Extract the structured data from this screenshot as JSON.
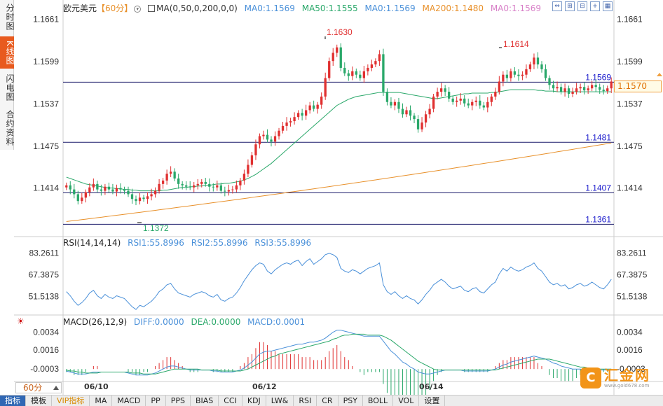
{
  "left_tabs": [
    {
      "label": "分时图",
      "active": false
    },
    {
      "label": "K线图",
      "active": true
    },
    {
      "label": "闪电图",
      "active": false
    },
    {
      "label": "合约资料",
      "active": false
    }
  ],
  "header": {
    "symbol": "欧元美元",
    "period": "【60分】",
    "period_icon": "chevron-down-circle-icon",
    "ma_params": "MA(0,50,0,200,0,0)",
    "ma_items": [
      {
        "label": "MA0:1.1569",
        "color": "#4a90d9"
      },
      {
        "label": "MA50:1.1555",
        "color": "#2aa86a"
      },
      {
        "label": "MA0:1.1569",
        "color": "#4a90d9"
      },
      {
        "label": "MA200:1.1480",
        "color": "#e8902a"
      },
      {
        "label": "MA0:1.1569",
        "color": "#d880c8"
      }
    ]
  },
  "window_tools": [
    "zoom-fit-icon",
    "zoom-in-icon",
    "zoom-out-icon",
    "add-icon",
    "grid-icon"
  ],
  "price_axis": {
    "left_ticks": [
      "1.1661",
      "1.1599",
      "1.1537",
      "1.1475",
      "1.1414"
    ],
    "right_ticks": [
      "1.1661",
      "1.1599",
      "1.1537",
      "1.1475",
      "1.1414"
    ],
    "current_price": "1.1570"
  },
  "price_lines": [
    {
      "label": "1.1569",
      "value": 1.1569
    },
    {
      "label": "1.1481",
      "value": 1.1481
    },
    {
      "label": "1.1407",
      "value": 1.1407
    },
    {
      "label": "1.1361",
      "value": 1.1361
    }
  ],
  "annotations": {
    "high1": "1.1630",
    "high2": "1.1614",
    "low1": "1.1372"
  },
  "rsi": {
    "title": "RSI(14,14,14)",
    "items": [
      {
        "label": "RSI1:55.8996",
        "color": "#4a90d9"
      },
      {
        "label": "RSI2:55.8996",
        "color": "#4a90d9"
      },
      {
        "label": "RSI3:55.8996",
        "color": "#4a90d9"
      }
    ],
    "ticks": [
      "83.2611",
      "67.3875",
      "51.5138"
    ]
  },
  "macd": {
    "title": "MACD(26,12,9)",
    "items": [
      {
        "label": "DIFF:0.0000",
        "color": "#4a90d9"
      },
      {
        "label": "DEA:0.0000",
        "color": "#2aa86a"
      },
      {
        "label": "MACD:0.0001",
        "color": "#4a90d9"
      }
    ],
    "ticks": [
      "0.0034",
      "0.0016",
      "-0.0003"
    ]
  },
  "dates": [
    "06/10",
    "06/12",
    "06/14"
  ],
  "period_select": "60分",
  "bottom_tabs": [
    "指标",
    "模板",
    "VIP指标",
    "MA",
    "MACD",
    "PP",
    "PPS",
    "BIAS",
    "CCI",
    "KDJ",
    "LW&",
    "RSI",
    "CR",
    "PSY",
    "BOLL",
    "VOL",
    "设置"
  ],
  "watermark": {
    "logo": "C",
    "title": "汇金网",
    "sub": "www.gold678.com"
  },
  "chart_data": {
    "type": "candlestick",
    "title": "欧元美元 60分",
    "ylim": [
      1.1345,
      1.1675
    ],
    "closes": [
      1.1418,
      1.1412,
      1.1405,
      1.1395,
      1.14,
      1.1408,
      1.1415,
      1.142,
      1.1412,
      1.141,
      1.1416,
      1.1412,
      1.1409,
      1.1414,
      1.1412,
      1.141,
      1.1405,
      1.1398,
      1.1395,
      1.14,
      1.1398,
      1.1402,
      1.1405,
      1.141,
      1.142,
      1.1425,
      1.1435,
      1.1438,
      1.1428,
      1.142,
      1.1418,
      1.1416,
      1.1415,
      1.1418,
      1.142,
      1.1423,
      1.142,
      1.1416,
      1.1415,
      1.1418,
      1.141,
      1.1409,
      1.1411,
      1.1412,
      1.1418,
      1.1425,
      1.1435,
      1.1448,
      1.1462,
      1.1478,
      1.149,
      1.1492,
      1.1485,
      1.1482,
      1.149,
      1.1498,
      1.1505,
      1.151,
      1.1512,
      1.1518,
      1.1524,
      1.152,
      1.1528,
      1.1535,
      1.153,
      1.1536,
      1.1548,
      1.1575,
      1.16,
      1.1612,
      1.162,
      1.159,
      1.1582,
      1.1578,
      1.1585,
      1.158,
      1.1575,
      1.1585,
      1.159,
      1.1595,
      1.16,
      1.161,
      1.1555,
      1.154,
      1.1535,
      1.154,
      1.153,
      1.1522,
      1.1528,
      1.152,
      1.1515,
      1.15,
      1.151,
      1.1522,
      1.153,
      1.1548,
      1.1555,
      1.156,
      1.1555,
      1.1545,
      1.154,
      1.1542,
      1.1545,
      1.1538,
      1.1535,
      1.154,
      1.1542,
      1.1535,
      1.1532,
      1.154,
      1.1548,
      1.1555,
      1.157,
      1.158,
      1.1575,
      1.1585,
      1.158,
      1.1578,
      1.158,
      1.1588,
      1.1595,
      1.1605,
      1.1595,
      1.1588,
      1.1575,
      1.1565,
      1.156,
      1.1562,
      1.1555,
      1.156,
      1.1552,
      1.1555,
      1.156,
      1.1562,
      1.1557,
      1.156,
      1.1565,
      1.1562,
      1.1558,
      1.1556,
      1.156,
      1.157
    ],
    "ma50": [
      1.143,
      1.1428,
      1.1426,
      1.1424,
      1.1422,
      1.142,
      1.1419,
      1.1418,
      1.1417,
      1.1416,
      1.1415,
      1.1414,
      1.1414,
      1.1413,
      1.1413,
      1.1412,
      1.1412,
      1.1411,
      1.1411,
      1.141,
      1.141,
      1.141,
      1.141,
      1.141,
      1.141,
      1.1411,
      1.1411,
      1.1412,
      1.1413,
      1.1414,
      1.1415,
      1.1415,
      1.1416,
      1.1416,
      1.1417,
      1.1417,
      1.1418,
      1.1418,
      1.1419,
      1.142,
      1.142,
      1.1421,
      1.1421,
      1.1422,
      1.1423,
      1.1424,
      1.1426,
      1.1428,
      1.1431,
      1.1434,
      1.1438,
      1.1442,
      1.1446,
      1.145,
      1.1455,
      1.146,
      1.1465,
      1.147,
      1.1475,
      1.148,
      1.1485,
      1.149,
      1.1495,
      1.15,
      1.1505,
      1.151,
      1.1515,
      1.152,
      1.1525,
      1.153,
      1.1535,
      1.1538,
      1.1541,
      1.1544,
      1.1546,
      1.1548,
      1.1549,
      1.155,
      1.1551,
      1.1552,
      1.1553,
      1.1554,
      1.1554,
      1.1554,
      1.1554,
      1.1554,
      1.1554,
      1.1553,
      1.1552,
      1.1551,
      1.155,
      1.1549,
      1.1548,
      1.1547,
      1.1546,
      1.1545,
      1.1545,
      1.1546,
      1.1547,
      1.1548,
      1.1549,
      1.155,
      1.1551,
      1.1552,
      1.1552,
      1.1553,
      1.1553,
      1.1553,
      1.1553,
      1.1553,
      1.1554,
      1.1554,
      1.1555,
      1.1556,
      1.1557,
      1.1558,
      1.1558,
      1.1558,
      1.1558,
      1.1558,
      1.1558,
      1.1558,
      1.1557,
      1.1557,
      1.1556,
      1.1556,
      1.1556,
      1.1555,
      1.1555,
      1.1555,
      1.1555,
      1.1555,
      1.1555,
      1.1555,
      1.1555,
      1.1555,
      1.1555,
      1.1555,
      1.1555,
      1.1555,
      1.1555,
      1.1555
    ],
    "ma200_start": 1.1365,
    "ma200_end": 1.148,
    "rsi": [
      55,
      52,
      48,
      45,
      47,
      50,
      54,
      56,
      52,
      50,
      53,
      51,
      50,
      52,
      51,
      50,
      47,
      44,
      42,
      45,
      44,
      46,
      48,
      51,
      55,
      57,
      60,
      61,
      57,
      54,
      53,
      52,
      51,
      53,
      54,
      55,
      54,
      52,
      51,
      53,
      49,
      48,
      50,
      51,
      54,
      58,
      63,
      67,
      71,
      74,
      76,
      75,
      70,
      68,
      71,
      73,
      75,
      76,
      75,
      77,
      78,
      74,
      77,
      79,
      75,
      77,
      79,
      82,
      83,
      82,
      80,
      72,
      70,
      69,
      71,
      70,
      68,
      70,
      72,
      73,
      74,
      76,
      60,
      55,
      53,
      55,
      52,
      50,
      52,
      50,
      49,
      46,
      49,
      53,
      56,
      60,
      62,
      64,
      62,
      59,
      57,
      58,
      59,
      56,
      55,
      57,
      58,
      55,
      54,
      57,
      60,
      62,
      68,
      72,
      70,
      73,
      71,
      70,
      71,
      73,
      74,
      76,
      72,
      70,
      66,
      62,
      60,
      61,
      59,
      60,
      57,
      58,
      60,
      61,
      59,
      60,
      62,
      60,
      58,
      57,
      60,
      64
    ],
    "diff": [
      -0.0002,
      -0.0003,
      -0.0004,
      -0.0005,
      -0.0005,
      -0.0005,
      -0.0004,
      -0.0003,
      -0.0003,
      -0.0003,
      -0.0003,
      -0.0003,
      -0.0003,
      -0.0003,
      -0.0003,
      -0.0003,
      -0.0004,
      -0.0005,
      -0.0006,
      -0.0006,
      -0.0006,
      -0.0006,
      -0.0005,
      -0.0004,
      -0.0002,
      0.0,
      0.0002,
      0.0003,
      0.0003,
      0.0002,
      0.0001,
      0.0,
      -0.0001,
      -0.0001,
      -0.0001,
      -0.0001,
      -0.0001,
      -0.0001,
      -0.0002,
      -0.0002,
      -0.0003,
      -0.0003,
      -0.0003,
      -0.0003,
      -0.0002,
      -0.0001,
      0.0001,
      0.0004,
      0.0007,
      0.0011,
      0.0015,
      0.0017,
      0.0018,
      0.0018,
      0.0019,
      0.002,
      0.0021,
      0.0022,
      0.0023,
      0.0024,
      0.0025,
      0.0025,
      0.0026,
      0.0027,
      0.0027,
      0.0028,
      0.0029,
      0.0031,
      0.0034,
      0.0037,
      0.0039,
      0.0039,
      0.0038,
      0.0037,
      0.0036,
      0.0035,
      0.0034,
      0.0033,
      0.0033,
      0.0033,
      0.0033,
      0.0033,
      0.0028,
      0.0023,
      0.0018,
      0.0015,
      0.0011,
      0.0007,
      0.0005,
      0.0002,
      0.0,
      -0.0003,
      -0.0004,
      -0.0005,
      -0.0005,
      -0.0004,
      -0.0003,
      -0.0002,
      -0.0001,
      -0.0001,
      -0.0001,
      -0.0001,
      -0.0001,
      -0.0002,
      -0.0002,
      -0.0002,
      -0.0002,
      -0.0002,
      -0.0002,
      -0.0002,
      -0.0001,
      0.0,
      0.0002,
      0.0004,
      0.0005,
      0.0007,
      0.0008,
      0.0009,
      0.001,
      0.0011,
      0.0012,
      0.0013,
      0.0012,
      0.0011,
      0.001,
      0.0008,
      0.0006,
      0.0005,
      0.0003,
      0.0002,
      0.0001,
      0.0,
      0.0,
      0.0,
      -0.0001,
      -0.0001,
      -0.0001,
      -0.0001,
      -0.0001,
      -0.0001,
      -0.0001,
      0.0
    ],
    "dea": [
      -0.0001,
      -0.0002,
      -0.0002,
      -0.0003,
      -0.0003,
      -0.0004,
      -0.0004,
      -0.0004,
      -0.0004,
      -0.0003,
      -0.0003,
      -0.0003,
      -0.0003,
      -0.0003,
      -0.0003,
      -0.0003,
      -0.0003,
      -0.0004,
      -0.0004,
      -0.0004,
      -0.0005,
      -0.0005,
      -0.0005,
      -0.0005,
      -0.0004,
      -0.0003,
      -0.0002,
      -0.0001,
      0.0,
      0.0,
      0.0,
      0.0,
      0.0,
      0.0,
      0.0,
      -0.0001,
      -0.0001,
      -0.0001,
      -0.0001,
      -0.0001,
      -0.0002,
      -0.0002,
      -0.0002,
      -0.0002,
      -0.0002,
      -0.0002,
      -0.0001,
      0.0,
      0.0002,
      0.0004,
      0.0006,
      0.0008,
      0.001,
      0.0012,
      0.0013,
      0.0015,
      0.0016,
      0.0017,
      0.0018,
      0.0019,
      0.002,
      0.0021,
      0.0022,
      0.0023,
      0.0024,
      0.0025,
      0.0026,
      0.0027,
      0.0028,
      0.003,
      0.0031,
      0.0033,
      0.0034,
      0.0034,
      0.0035,
      0.0035,
      0.0035,
      0.0035,
      0.0034,
      0.0034,
      0.0034,
      0.0034,
      0.0033,
      0.0031,
      0.0029,
      0.0026,
      0.0023,
      0.002,
      0.0017,
      0.0014,
      0.0011,
      0.0008,
      0.0006,
      0.0004,
      0.0002,
      0.0,
      -0.0001,
      -0.0001,
      -0.0001,
      -0.0001,
      -0.0001,
      -0.0001,
      -0.0001,
      -0.0001,
      -0.0001,
      -0.0001,
      -0.0001,
      -0.0001,
      -0.0001,
      -0.0001,
      -0.0001,
      -0.0001,
      0.0,
      0.0001,
      0.0002,
      0.0003,
      0.0004,
      0.0005,
      0.0006,
      0.0007,
      0.0008,
      0.0009,
      0.001,
      0.001,
      0.001,
      0.001,
      0.0009,
      0.0008,
      0.0007,
      0.0006,
      0.0005,
      0.0004,
      0.0003,
      0.0002,
      0.0002,
      0.0001,
      0.0001,
      0.0,
      0.0,
      0.0,
      0.0,
      0.0
    ]
  }
}
